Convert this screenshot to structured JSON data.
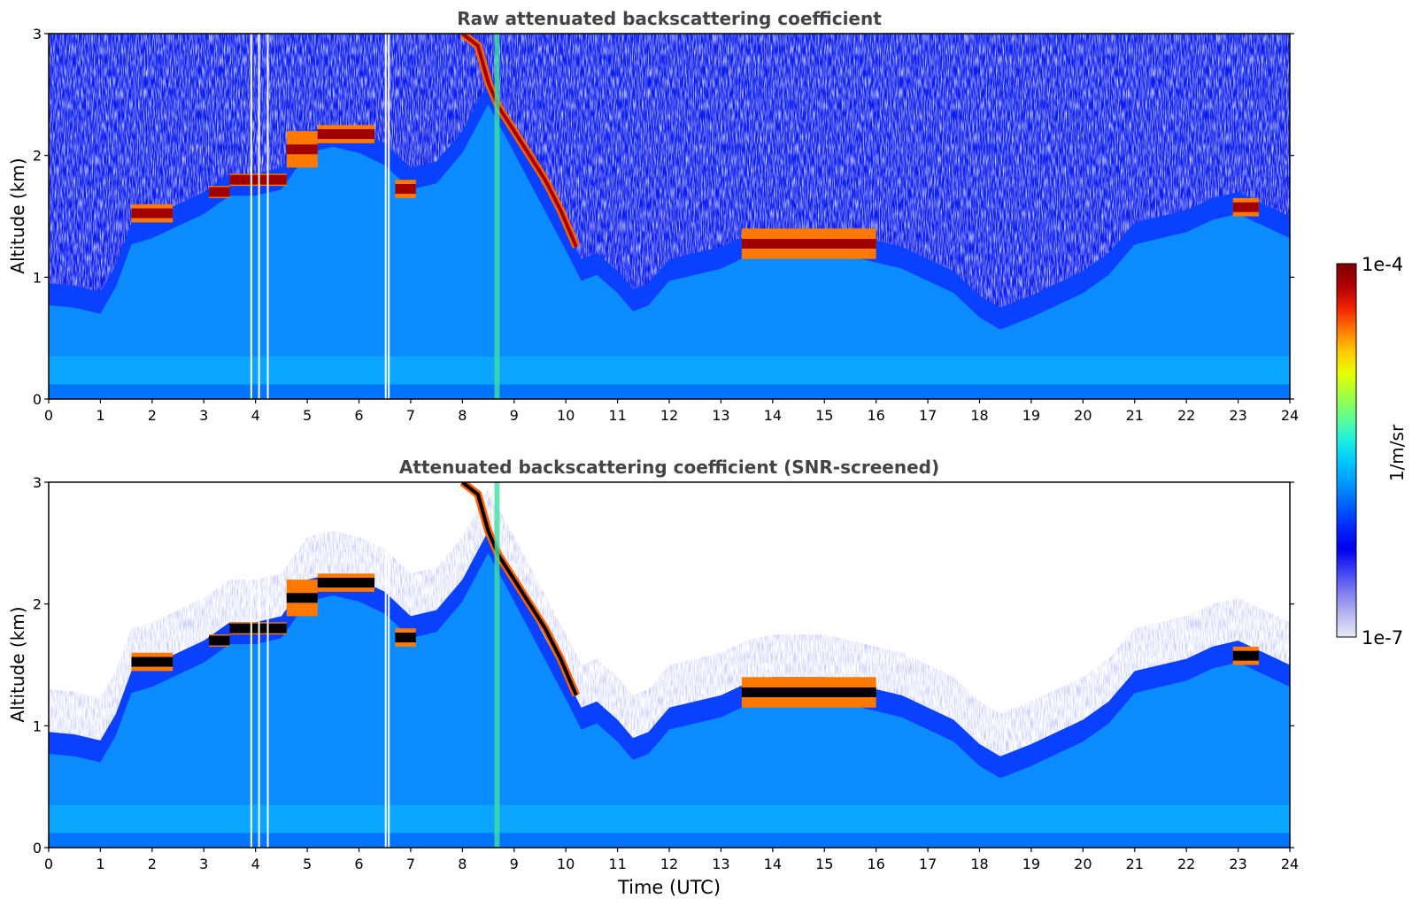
{
  "chart_data": [
    {
      "type": "heatmap",
      "title": "Raw attenuated backscattering coefficient",
      "xlabel": "",
      "ylabel": "Altitude (km)",
      "xlim": [
        0,
        24
      ],
      "ylim": [
        0,
        3
      ],
      "x_ticks": [
        "0",
        "1",
        "2",
        "3",
        "4",
        "5",
        "6",
        "7",
        "8",
        "9",
        "10",
        "11",
        "12",
        "13",
        "14",
        "15",
        "16",
        "17",
        "18",
        "19",
        "20",
        "21",
        "22",
        "23",
        "24"
      ],
      "y_ticks": [
        "0",
        "1",
        "2",
        "3"
      ],
      "screened": false
    },
    {
      "type": "heatmap",
      "title": "Attenuated backscattering coefficient (SNR-screened)",
      "xlabel": "Time (UTC)",
      "ylabel": "Altitude (km)",
      "xlim": [
        0,
        24
      ],
      "ylim": [
        0,
        3
      ],
      "x_ticks": [
        "0",
        "1",
        "2",
        "3",
        "4",
        "5",
        "6",
        "7",
        "8",
        "9",
        "10",
        "11",
        "12",
        "13",
        "14",
        "15",
        "16",
        "17",
        "18",
        "19",
        "20",
        "21",
        "22",
        "23",
        "24"
      ],
      "y_ticks": [
        "0",
        "1",
        "2",
        "3"
      ],
      "screened": true
    }
  ],
  "features": {
    "boundary_top_km": [
      [
        0,
        0.95
      ],
      [
        0.5,
        0.93
      ],
      [
        1,
        0.88
      ],
      [
        1.3,
        1.1
      ],
      [
        1.6,
        1.45
      ],
      [
        2,
        1.5
      ],
      [
        2.5,
        1.6
      ],
      [
        3,
        1.7
      ],
      [
        3.5,
        1.85
      ],
      [
        4,
        1.85
      ],
      [
        4.5,
        1.9
      ],
      [
        5,
        2.2
      ],
      [
        5.5,
        2.25
      ],
      [
        6,
        2.2
      ],
      [
        6.5,
        2.1
      ],
      [
        7,
        1.9
      ],
      [
        7.5,
        1.95
      ],
      [
        8,
        2.2
      ],
      [
        8.5,
        2.6
      ],
      [
        9,
        2.2
      ],
      [
        9.5,
        1.8
      ],
      [
        10,
        1.4
      ],
      [
        10.3,
        1.15
      ],
      [
        10.6,
        1.2
      ],
      [
        11,
        1.05
      ],
      [
        11.3,
        0.9
      ],
      [
        11.6,
        0.95
      ],
      [
        12,
        1.15
      ],
      [
        12.5,
        1.2
      ],
      [
        13,
        1.25
      ],
      [
        13.5,
        1.35
      ],
      [
        14,
        1.4
      ],
      [
        14.5,
        1.4
      ],
      [
        15,
        1.4
      ],
      [
        15.5,
        1.35
      ],
      [
        16,
        1.3
      ],
      [
        16.5,
        1.25
      ],
      [
        17,
        1.15
      ],
      [
        17.5,
        1.05
      ],
      [
        18,
        0.85
      ],
      [
        18.4,
        0.75
      ],
      [
        19,
        0.85
      ],
      [
        19.5,
        0.95
      ],
      [
        20,
        1.05
      ],
      [
        20.5,
        1.2
      ],
      [
        21,
        1.45
      ],
      [
        21.5,
        1.5
      ],
      [
        22,
        1.55
      ],
      [
        22.5,
        1.65
      ],
      [
        23,
        1.7
      ],
      [
        23.5,
        1.6
      ],
      [
        24,
        1.5
      ]
    ],
    "cloud_layers": [
      {
        "t0": 1.6,
        "t1": 2.4,
        "h0": 1.45,
        "h1": 1.6
      },
      {
        "t0": 3.1,
        "t1": 3.5,
        "h0": 1.65,
        "h1": 1.75
      },
      {
        "t0": 3.5,
        "t1": 4.6,
        "h0": 1.75,
        "h1": 1.85
      },
      {
        "t0": 4.6,
        "t1": 5.2,
        "h0": 1.9,
        "h1": 2.2
      },
      {
        "t0": 5.2,
        "t1": 6.3,
        "h0": 2.1,
        "h1": 2.25
      },
      {
        "t0": 6.7,
        "t1": 7.1,
        "h0": 1.65,
        "h1": 1.8
      },
      {
        "t0": 13.4,
        "t1": 16.0,
        "h0": 1.15,
        "h1": 1.4
      },
      {
        "t0": 22.9,
        "t1": 23.4,
        "h0": 1.5,
        "h1": 1.65
      }
    ],
    "descending_layer": [
      [
        8.0,
        3.0
      ],
      [
        8.3,
        2.9
      ],
      [
        8.5,
        2.6
      ],
      [
        8.7,
        2.4
      ],
      [
        9.0,
        2.2
      ],
      [
        9.3,
        2.0
      ],
      [
        9.6,
        1.8
      ],
      [
        9.9,
        1.55
      ],
      [
        10.2,
        1.25
      ]
    ]
  },
  "colorbar": {
    "label": "1/m/sr",
    "max_label": "1e-4",
    "min_label": "1e-7",
    "colors": [
      "#e9e9f7",
      "#b9b9f0",
      "#8080f0",
      "#4040f5",
      "#0000f0",
      "#0028ff",
      "#0060ff",
      "#0098ff",
      "#00c8ff",
      "#20f0e0",
      "#60ff90",
      "#a0ff40",
      "#e8ff00",
      "#ffc800",
      "#ff7800",
      "#f02000",
      "#b00000",
      "#800000"
    ]
  }
}
